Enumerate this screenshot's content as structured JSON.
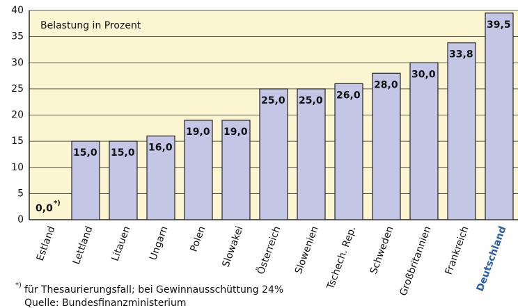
{
  "chart_data": {
    "type": "bar",
    "subtitle": "Belastung in Prozent",
    "categories": [
      "Estland",
      "Lettland",
      "Litauen",
      "Ungarn",
      "Polen",
      "Slowakei",
      "Österreich",
      "Slowenien",
      "Tschech. Rep.",
      "Schweden",
      "Großbritannien",
      "Frankreich",
      "Deutschland"
    ],
    "values": [
      0,
      15,
      15,
      16,
      19,
      19,
      25,
      25,
      26,
      28,
      30,
      33.8,
      39.5
    ],
    "value_labels": [
      "0,0",
      "15,0",
      "15,0",
      "16,0",
      "19,0",
      "19,0",
      "25,0",
      "25,0",
      "26,0",
      "28,0",
      "30,0",
      "33,8",
      "39,5"
    ],
    "color": "#c4c6e6",
    "background": "#fbf5d2",
    "highlight": {
      "category": 12,
      "color": "#2a5fa8"
    },
    "ylim": [
      0,
      40
    ],
    "yticks": [
      0,
      5,
      10,
      15,
      20,
      25,
      30,
      35,
      40
    ],
    "grid": true,
    "footnote": {
      "marker": "*)",
      "text": "für Thesaurierungsfall; bei Gewinnausschüttung 24%"
    },
    "source": "Quelle: Bundesfinanzministerium"
  }
}
